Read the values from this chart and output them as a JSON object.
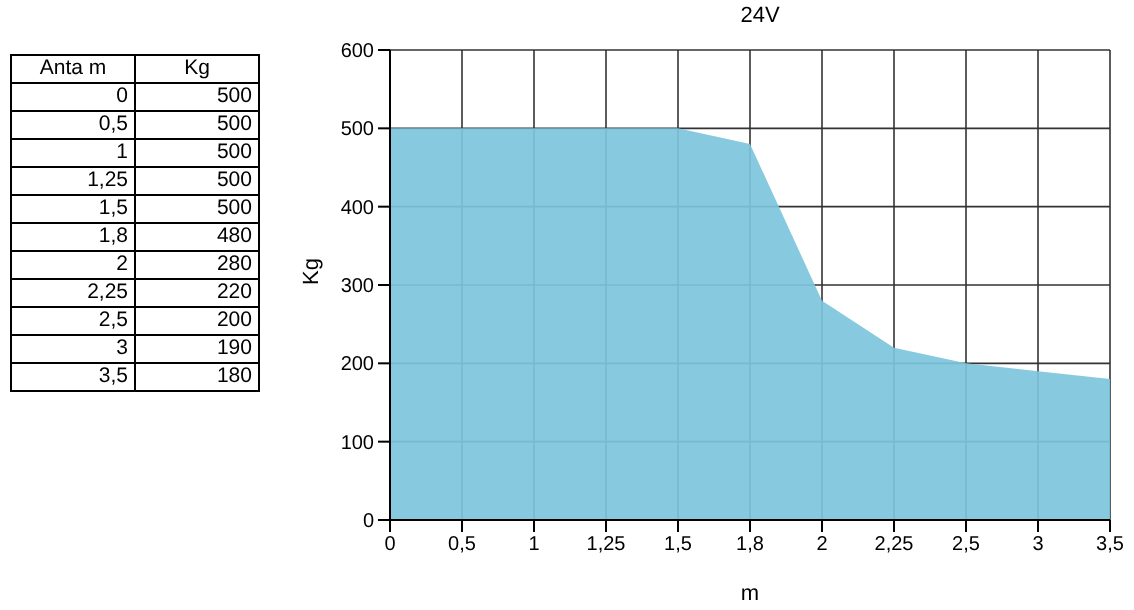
{
  "chart_data": [
    {
      "type": "other",
      "xlabel": "Anta m",
      "ylabel": "Kg",
      "categories": [
        "0",
        "0,5",
        "1",
        "1,25",
        "1,5",
        "1,8",
        "2",
        "2,25",
        "2,5",
        "3",
        "3,5"
      ],
      "values": [
        500,
        500,
        500,
        500,
        500,
        480,
        280,
        220,
        200,
        190,
        180
      ],
      "data_labels": true
    },
    {
      "type": "area",
      "title": "24V",
      "xlabel": "m",
      "ylabel": "Kg",
      "categories": [
        "0",
        "0,5",
        "1",
        "1,25",
        "1,5",
        "1,8",
        "2",
        "2,25",
        "2,5",
        "3",
        "3,5"
      ],
      "values": [
        500,
        500,
        500,
        500,
        500,
        480,
        280,
        220,
        200,
        190,
        180
      ],
      "color": "#7dc5dc",
      "ylim": [
        0,
        600
      ],
      "yticks": [
        0,
        100,
        200,
        300,
        400,
        500,
        600
      ],
      "grid": true
    }
  ]
}
